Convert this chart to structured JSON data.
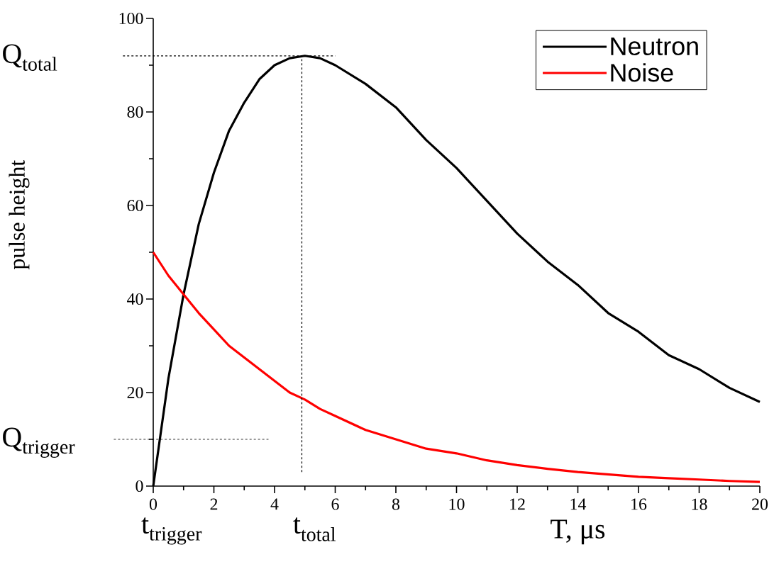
{
  "chart_data": {
    "type": "line",
    "xlabel": "T, μs",
    "ylabel": "pulse height",
    "x": [
      0,
      0.5,
      1,
      1.5,
      2,
      2.5,
      3,
      3.5,
      4,
      4.5,
      5,
      5.5,
      6,
      7,
      8,
      9,
      10,
      11,
      12,
      13,
      14,
      15,
      16,
      17,
      18,
      19,
      20
    ],
    "series": [
      {
        "name": "Neutron",
        "color": "#000000",
        "values": [
          0,
          23,
          41,
          56,
          67,
          76,
          82,
          87,
          90,
          91.5,
          92,
          91.5,
          90,
          86,
          81,
          74,
          68,
          61,
          54,
          48,
          43,
          37,
          33,
          28,
          25,
          21,
          18
        ]
      },
      {
        "name": "Noise",
        "color": "#ff0000",
        "values": [
          50,
          45,
          41,
          37,
          33.5,
          30,
          27.5,
          25,
          22.5,
          20,
          18.5,
          16.5,
          15,
          12,
          10,
          8,
          7,
          5.5,
          4.5,
          3.7,
          3,
          2.5,
          2,
          1.7,
          1.4,
          1.1,
          0.9
        ]
      }
    ],
    "xlim": [
      0,
      20
    ],
    "xticks": [
      0,
      2,
      4,
      6,
      8,
      10,
      12,
      14,
      16,
      18,
      20
    ],
    "ylim": [
      0,
      100
    ],
    "yticks": [
      0,
      20,
      40,
      60,
      80,
      100
    ],
    "ref_lines": [
      {
        "axis": "y",
        "value": 92,
        "label": "Q$_{total}$",
        "line_style": "dashed",
        "color": "#000000"
      },
      {
        "axis": "y",
        "value": 10,
        "label": "Q$_{trigger}$",
        "line_style": "dashed",
        "color": "#000000"
      },
      {
        "axis": "x",
        "value": 4.9,
        "label": "t$_{total}$",
        "line_style": "dashed",
        "color": "#000000"
      }
    ],
    "annotations": [
      {
        "text": "t$_{trigger}$",
        "x": 0,
        "y": 0
      }
    ],
    "legend": "top right",
    "grid": false,
    "marker": "none",
    "line_style": "solid"
  }
}
